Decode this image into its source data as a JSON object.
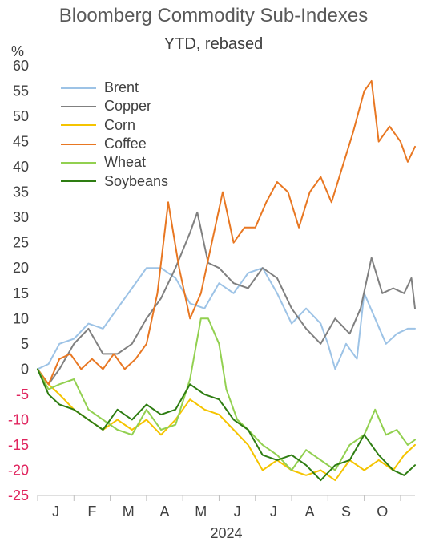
{
  "chart_data": {
    "type": "line",
    "title": "Bloomberg Commodity Sub-Indexes",
    "subtitle": "YTD, rebased",
    "ylabel": "%",
    "ylim": [
      -25,
      60
    ],
    "yticks": [
      60,
      55,
      50,
      45,
      40,
      35,
      30,
      25,
      20,
      15,
      10,
      5,
      0,
      -5,
      -10,
      -15,
      -20,
      -25
    ],
    "x_tick_labels": [
      "J",
      "F",
      "M",
      "A",
      "M",
      "J",
      "J",
      "A",
      "S",
      "O"
    ],
    "x_year_label": "2024",
    "x_range_months": [
      0,
      10.4
    ],
    "legend_position": "top-left",
    "series": [
      {
        "name": "Brent",
        "color": "#9DC3E6",
        "x": [
          0,
          0.3,
          0.6,
          1.0,
          1.4,
          1.8,
          2.2,
          2.6,
          3.0,
          3.4,
          3.8,
          4.2,
          4.6,
          5.0,
          5.4,
          5.8,
          6.2,
          6.6,
          7.0,
          7.4,
          7.8,
          8.0,
          8.2,
          8.5,
          8.8,
          9.0,
          9.3,
          9.6,
          9.9,
          10.2,
          10.4
        ],
        "values": [
          0,
          1,
          5,
          6,
          9,
          8,
          12,
          16,
          20,
          20,
          18,
          13,
          12,
          17,
          15,
          19,
          20,
          15,
          9,
          12,
          9,
          5,
          0,
          5,
          2,
          15,
          10,
          5,
          7,
          8,
          8
        ]
      },
      {
        "name": "Copper",
        "color": "#808080",
        "x": [
          0,
          0.3,
          0.6,
          1.0,
          1.4,
          1.8,
          2.2,
          2.6,
          3.0,
          3.4,
          3.8,
          4.2,
          4.4,
          4.7,
          5.0,
          5.4,
          5.8,
          6.2,
          6.6,
          7.0,
          7.4,
          7.8,
          8.2,
          8.6,
          8.9,
          9.2,
          9.5,
          9.8,
          10.1,
          10.3,
          10.4
        ],
        "values": [
          0,
          -3,
          0,
          5,
          8,
          3,
          3,
          5,
          10,
          14,
          20,
          27,
          31,
          21,
          20,
          17,
          16,
          20,
          18,
          12,
          8,
          5,
          10,
          7,
          12,
          22,
          15,
          16,
          15,
          18,
          12
        ]
      },
      {
        "name": "Corn",
        "color": "#F5C400",
        "x": [
          0,
          0.3,
          0.6,
          1.0,
          1.4,
          1.8,
          2.2,
          2.6,
          3.0,
          3.4,
          3.8,
          4.2,
          4.6,
          5.0,
          5.4,
          5.8,
          6.2,
          6.6,
          7.0,
          7.4,
          7.8,
          8.2,
          8.6,
          9.0,
          9.4,
          9.8,
          10.1,
          10.4
        ],
        "values": [
          0,
          -3,
          -5,
          -8,
          -10,
          -12,
          -10,
          -12,
          -10,
          -13,
          -10,
          -6,
          -8,
          -9,
          -12,
          -15,
          -20,
          -18,
          -20,
          -21,
          -20,
          -22,
          -18,
          -20,
          -18,
          -20,
          -17,
          -15
        ]
      },
      {
        "name": "Coffee",
        "color": "#E87722",
        "x": [
          0,
          0.3,
          0.6,
          0.9,
          1.2,
          1.5,
          1.8,
          2.1,
          2.4,
          2.7,
          3.0,
          3.3,
          3.6,
          3.9,
          4.2,
          4.5,
          4.8,
          5.1,
          5.4,
          5.7,
          6.0,
          6.3,
          6.6,
          6.9,
          7.2,
          7.5,
          7.8,
          8.1,
          8.4,
          8.7,
          9.0,
          9.2,
          9.4,
          9.7,
          10.0,
          10.2,
          10.4
        ],
        "values": [
          0,
          -3,
          2,
          3,
          0,
          2,
          0,
          3,
          0,
          2,
          5,
          15,
          33,
          20,
          10,
          15,
          25,
          35,
          25,
          28,
          28,
          33,
          37,
          35,
          28,
          35,
          38,
          33,
          40,
          47,
          55,
          57,
          45,
          48,
          45,
          41,
          44
        ]
      },
      {
        "name": "Wheat",
        "color": "#92D050",
        "x": [
          0,
          0.3,
          0.6,
          1.0,
          1.4,
          1.8,
          2.2,
          2.6,
          3.0,
          3.4,
          3.8,
          4.2,
          4.5,
          4.7,
          5.0,
          5.2,
          5.5,
          5.8,
          6.2,
          6.6,
          7.0,
          7.4,
          7.8,
          8.2,
          8.6,
          9.0,
          9.3,
          9.6,
          9.9,
          10.2,
          10.4
        ],
        "values": [
          0,
          -4,
          -3,
          -2,
          -8,
          -10,
          -12,
          -13,
          -8,
          -12,
          -11,
          -2,
          10,
          10,
          5,
          -4,
          -10,
          -12,
          -15,
          -17,
          -20,
          -16,
          -18,
          -20,
          -15,
          -13,
          -8,
          -13,
          -12,
          -15,
          -14
        ]
      },
      {
        "name": "Soybeans",
        "color": "#2E7D12",
        "x": [
          0,
          0.3,
          0.6,
          1.0,
          1.4,
          1.8,
          2.2,
          2.6,
          3.0,
          3.4,
          3.8,
          4.2,
          4.6,
          5.0,
          5.4,
          5.8,
          6.2,
          6.6,
          7.0,
          7.4,
          7.8,
          8.2,
          8.6,
          9.0,
          9.4,
          9.8,
          10.1,
          10.4
        ],
        "values": [
          0,
          -5,
          -7,
          -8,
          -10,
          -12,
          -8,
          -10,
          -7,
          -9,
          -8,
          -3,
          -5,
          -6,
          -10,
          -12,
          -17,
          -18,
          -17,
          -19,
          -22,
          -19,
          -18,
          -13,
          -17,
          -20,
          -21,
          -19
        ]
      }
    ]
  }
}
